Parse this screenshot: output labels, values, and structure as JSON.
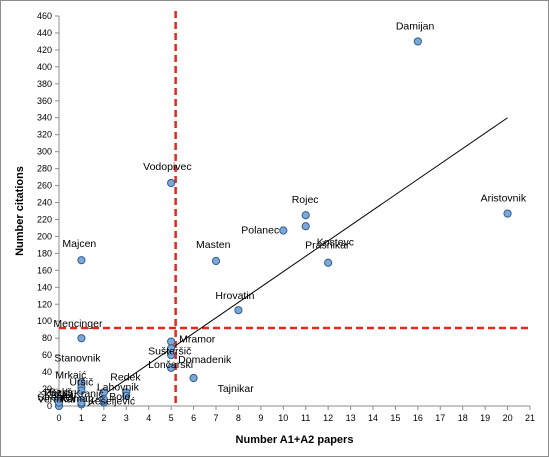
{
  "chart_data": {
    "type": "scatter",
    "title": "",
    "xlabel": "Number A1+A2 papers",
    "ylabel": "Number citations",
    "xlim": [
      0,
      21
    ],
    "ylim": [
      0,
      460
    ],
    "x_ticks": [
      0,
      1,
      2,
      3,
      4,
      5,
      6,
      7,
      8,
      9,
      10,
      11,
      12,
      13,
      14,
      15,
      16,
      17,
      18,
      19,
      20,
      21
    ],
    "y_ticks": [
      0,
      20,
      40,
      60,
      80,
      100,
      120,
      140,
      160,
      180,
      200,
      220,
      240,
      260,
      280,
      300,
      320,
      340,
      360,
      380,
      400,
      420,
      440,
      460
    ],
    "grid": false,
    "legend": "none",
    "points": [
      {
        "label": "Damijan",
        "x": 16,
        "y": 430
      },
      {
        "label": "Aristovnik",
        "x": 20,
        "y": 227
      },
      {
        "label": "Vodopivec",
        "x": 5,
        "y": 263
      },
      {
        "label": "Rojec",
        "x": 11,
        "y": 225
      },
      {
        "label": "Polanec",
        "x": 10,
        "y": 207
      },
      {
        "label": "Kostevc",
        "x": 11,
        "y": 212
      },
      {
        "label": "Majcen",
        "x": 1,
        "y": 172
      },
      {
        "label": "Masten",
        "x": 7,
        "y": 171
      },
      {
        "label": "Prašnikar",
        "x": 12,
        "y": 169
      },
      {
        "label": "Hrovatin",
        "x": 8,
        "y": 113
      },
      {
        "label": "Mencinger",
        "x": 1,
        "y": 80
      },
      {
        "label": "Mramor",
        "x": 5,
        "y": 76
      },
      {
        "label": "Sušteršič",
        "x": 5,
        "y": 68
      },
      {
        "label": "Lončarski",
        "x": 5,
        "y": 60
      },
      {
        "label": "Domadenik",
        "x": 5,
        "y": 45
      },
      {
        "label": "Tajnikar",
        "x": 6,
        "y": 33
      },
      {
        "label": "Stanovnik",
        "x": 1,
        "y": 28
      },
      {
        "label": "Redek",
        "x": 3,
        "y": 16
      },
      {
        "label": "Bole",
        "x": 3,
        "y": 12
      },
      {
        "label": "Mrkaić",
        "x": 1,
        "y": 22
      },
      {
        "label": "Lahovnik",
        "x": 2,
        "y": 16
      },
      {
        "label": "Koman",
        "x": 1,
        "y": 7
      },
      {
        "label": "Kešeljević",
        "x": 2,
        "y": 4
      },
      {
        "label": "Pezdir",
        "x": 0,
        "y": 8
      },
      {
        "label": "Košak",
        "x": 0,
        "y": 0
      },
      {
        "label": "Štrenfelj",
        "x": 1,
        "y": 2
      },
      {
        "label": "Vernikar",
        "x": 1,
        "y": 4
      },
      {
        "label": "Bekš",
        "x": 0,
        "y": 4
      },
      {
        "label": "Kranjc",
        "x": 2,
        "y": 8
      },
      {
        "label": "Uršič",
        "x": 1,
        "y": 18
      }
    ],
    "trendline": {
      "x": [
        0,
        20
      ],
      "y": [
        -23,
        340
      ]
    },
    "reference_lines": {
      "vertical_x": 5.2,
      "horizontal_y": 92
    },
    "colors": {
      "marker_fill": "#7fa7d6",
      "marker_stroke": "#2f5e8e",
      "trendline": "#000000",
      "reference": "#e8261b"
    }
  }
}
